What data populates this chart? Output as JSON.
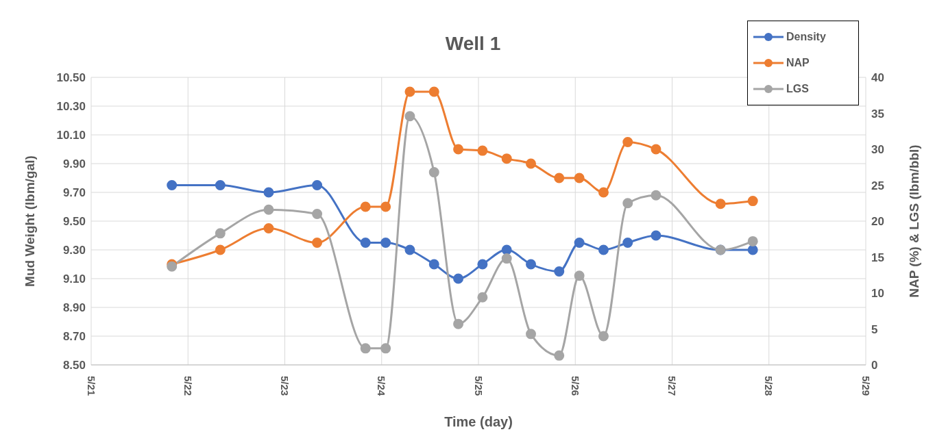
{
  "chart_data": {
    "type": "line",
    "title": "Well 1",
    "xlabel": "Time (day)",
    "ylabel": "Mud Weight (lbm/gal)",
    "y2label": "NAP (%) & LGS (lbm/bbl)",
    "x": [
      "--05-21T20:00",
      "--05-22T08:00",
      "--05-22T20:00",
      "--05-23T08:00",
      "--05-23T20:00",
      "--05-24T01:00",
      "--05-24T07:00",
      "--05-24T13:00",
      "--05-24T19:00",
      "--05-25T01:00",
      "--05-25T07:00",
      "--05-25T13:00",
      "--05-25T20:00",
      "--05-26T01:00",
      "--05-26T07:00",
      "--05-26T13:00",
      "--05-26T20:00",
      "--05-27T12:00",
      "--05-27T20:00"
    ],
    "series": [
      {
        "name": "Density",
        "color": "#4472c4",
        "values": [
          9.75,
          9.75,
          9.7,
          9.75,
          9.35,
          9.35,
          9.3,
          9.2,
          9.1,
          9.2,
          9.3,
          9.2,
          9.15,
          9.35,
          9.3,
          9.35,
          9.4,
          9.3,
          9.3
        ]
      },
      {
        "name": "NAP",
        "color": "#ed7d31",
        "axis": "y2",
        "values": [
          14,
          16,
          19,
          17,
          22,
          22,
          38,
          38,
          30,
          29.8,
          28.7,
          28,
          26,
          26,
          24,
          31,
          30,
          22.4,
          22.8
        ]
      },
      {
        "name": "LGS",
        "color": "#a5a5a5",
        "axis": "y2",
        "values": [
          13.7,
          18.3,
          21.6,
          21,
          2.3,
          2.3,
          34.6,
          26.8,
          5.7,
          9.4,
          14.8,
          4.3,
          1.3,
          12.4,
          4,
          22.5,
          23.6,
          16,
          17.2
        ]
      }
    ],
    "xlim": [
      "--05-21",
      "--05-29"
    ],
    "xticks": [
      {
        "value": "--05-21",
        "label": "5/21"
      },
      {
        "value": "--05-22",
        "label": "5/22"
      },
      {
        "value": "--05-23",
        "label": "5/23"
      },
      {
        "value": "--05-24",
        "label": "5/24"
      },
      {
        "value": "--05-25",
        "label": "5/25"
      },
      {
        "value": "--05-26",
        "label": "5/26"
      },
      {
        "value": "--05-27",
        "label": "5/27"
      },
      {
        "value": "--05-28",
        "label": "5/28"
      },
      {
        "value": "--05-29",
        "label": "5/29"
      }
    ],
    "ylim": [
      8.5,
      10.5
    ],
    "yticks": [
      {
        "value": 8.5,
        "label": "8.50"
      },
      {
        "value": 8.7,
        "label": "8.70"
      },
      {
        "value": 8.9,
        "label": "8.90"
      },
      {
        "value": 9.1,
        "label": "9.10"
      },
      {
        "value": 9.3,
        "label": "9.30"
      },
      {
        "value": 9.5,
        "label": "9.50"
      },
      {
        "value": 9.7,
        "label": "9.70"
      },
      {
        "value": 9.9,
        "label": "9.90"
      },
      {
        "value": 10.1,
        "label": "10.10"
      },
      {
        "value": 10.3,
        "label": "10.30"
      },
      {
        "value": 10.5,
        "label": "10.50"
      }
    ],
    "y2lim": [
      0,
      40
    ],
    "y2ticks": [
      0,
      5,
      10,
      15,
      20,
      25,
      30,
      35,
      40
    ],
    "grid": true,
    "legend": "top right",
    "marker": "circle",
    "line_style": "solid"
  }
}
